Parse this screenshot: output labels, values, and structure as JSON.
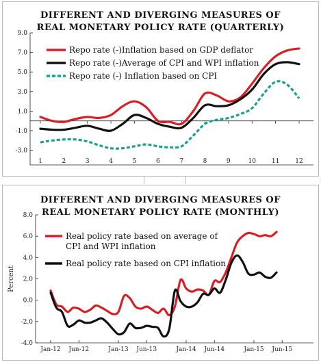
{
  "chart_data": [
    {
      "type": "line",
      "title_line1": "DIFFERENT AND DIVERGING MEASURES OF",
      "title_line2": "REAL MONETARY POLICY RATE (QUARTERLY)",
      "xlabel": "",
      "ylabel": "",
      "x_ticks": [
        "1",
        "2",
        "3",
        "4",
        "5",
        "6",
        "7",
        "8",
        "9",
        "10",
        "11",
        "12"
      ],
      "y_ticks": [
        "9.0",
        "7.0",
        "5.0",
        "3.0",
        "1.0",
        "-1.0",
        "-3.0"
      ],
      "ylim": [
        -4.5,
        9.0
      ],
      "legend_position": "top-left",
      "grid": false,
      "series": [
        {
          "name": "Repo rate (-)Inflation based on GDP deflator",
          "color": "#d71f26",
          "dash": false,
          "x": [
            1,
            1.5,
            2,
            2.5,
            3,
            3.5,
            4,
            4.5,
            5,
            5.5,
            6,
            6.5,
            7,
            7.5,
            8,
            8.5,
            9,
            9.5,
            10,
            10.5,
            11,
            11.5,
            12
          ],
          "y": [
            0.4,
            0.0,
            -0.1,
            0.2,
            0.4,
            0.3,
            0.6,
            1.5,
            2.0,
            1.4,
            0.0,
            -0.1,
            -0.3,
            1.0,
            2.8,
            2.6,
            2.0,
            2.4,
            3.8,
            5.4,
            6.6,
            7.2,
            7.4
          ]
        },
        {
          "name": "Repo rate (-)Average of CPI and WPI inflation",
          "color": "#111111",
          "dash": false,
          "x": [
            1,
            1.5,
            2,
            2.5,
            3,
            3.5,
            4,
            4.5,
            5,
            5.5,
            6,
            6.5,
            7,
            7.5,
            8,
            8.5,
            9,
            9.5,
            10,
            10.5,
            11,
            11.5,
            12
          ],
          "y": [
            -0.8,
            -0.9,
            -0.9,
            -0.7,
            -0.5,
            -0.8,
            -1.0,
            -0.3,
            0.6,
            0.3,
            -0.3,
            -0.6,
            -0.7,
            0.3,
            1.6,
            1.5,
            1.6,
            2.2,
            3.2,
            4.8,
            5.8,
            6.0,
            5.8
          ]
        },
        {
          "name": "Repo rate (-) Inflation based on CPI",
          "color": "#1d9e8e",
          "dash": true,
          "x": [
            1,
            1.5,
            2,
            2.5,
            3,
            3.5,
            4,
            4.5,
            5,
            5.5,
            6,
            6.5,
            7,
            7.5,
            8,
            8.5,
            9,
            9.5,
            10,
            10.5,
            11,
            11.5,
            12
          ],
          "y": [
            -2.2,
            -2.0,
            -1.9,
            -1.9,
            -2.1,
            -2.5,
            -2.8,
            -2.8,
            -2.6,
            -2.4,
            -2.6,
            -2.7,
            -2.6,
            -1.5,
            -0.3,
            0.1,
            0.3,
            0.7,
            1.3,
            2.8,
            4.0,
            3.7,
            2.3
          ]
        }
      ]
    },
    {
      "type": "line",
      "title_line1": "DIFFERENT AND DIVERGING MEASURES OF",
      "title_line2": "REAL MONETARY POLICY RATE (MONTHLY)",
      "xlabel": "",
      "ylabel": "Percent",
      "x_ticks": [
        "Jan-12",
        "Jun-12",
        "Jan-13",
        "Jun-13",
        "Jan-14",
        "Jun-14",
        "Jan-15",
        "Jun-15"
      ],
      "y_ticks": [
        "8.0",
        "6.0",
        "4.0",
        "2.0",
        "0.0",
        "-2.0",
        "-4.0"
      ],
      "ylim": [
        -4.0,
        8.0
      ],
      "legend_position": "top-left",
      "grid": false,
      "series": [
        {
          "name_line1": "Real policy rate based on average of",
          "name_line2": "CPI and WPI inflation",
          "color": "#d71f26",
          "x": [
            0,
            1,
            2,
            3,
            4,
            5,
            6,
            7,
            8,
            9,
            10,
            11,
            12,
            13,
            14,
            15,
            16,
            17,
            18,
            19,
            20,
            21,
            22,
            23,
            24,
            25,
            26,
            27,
            28,
            29,
            30,
            31,
            32,
            33,
            34,
            35,
            36,
            37,
            38,
            39,
            40
          ],
          "y": [
            0.9,
            -0.4,
            -0.6,
            -1.1,
            -0.7,
            -0.8,
            -1.1,
            -0.9,
            -0.5,
            -0.7,
            -1.0,
            -1.3,
            -1.1,
            0.4,
            0.2,
            -0.6,
            -0.8,
            -0.6,
            -0.9,
            -1.2,
            -0.8,
            -1.4,
            -0.6,
            1.9,
            1.1,
            0.8,
            1.0,
            0.9,
            0.5,
            1.8,
            1.7,
            2.6,
            4.0,
            5.4,
            6.0,
            6.3,
            6.2,
            6.0,
            6.1,
            6.0,
            6.4
          ]
        },
        {
          "name_line1": "Real policy rate based on CPI inflation",
          "name_line2": "",
          "color": "#111111",
          "x": [
            0,
            1,
            2,
            3,
            4,
            5,
            6,
            7,
            8,
            9,
            10,
            11,
            12,
            13,
            14,
            15,
            16,
            17,
            18,
            19,
            20,
            21,
            22,
            23,
            24,
            25,
            26,
            27,
            28,
            29,
            30,
            31,
            32,
            33,
            34,
            35,
            36,
            37,
            38,
            39,
            40
          ],
          "y": [
            0.7,
            -0.7,
            -1.1,
            -2.4,
            -2.3,
            -1.9,
            -2.1,
            -2.1,
            -1.9,
            -1.7,
            -2.1,
            -2.7,
            -3.2,
            -3.0,
            -2.2,
            -2.6,
            -2.6,
            -2.4,
            -2.5,
            -2.6,
            -3.4,
            -2.7,
            0.9,
            -0.1,
            -0.6,
            -0.6,
            -0.2,
            0.6,
            0.5,
            1.1,
            0.7,
            1.9,
            3.5,
            4.2,
            3.6,
            2.5,
            2.4,
            2.6,
            2.2,
            2.1,
            2.6
          ]
        }
      ]
    }
  ]
}
